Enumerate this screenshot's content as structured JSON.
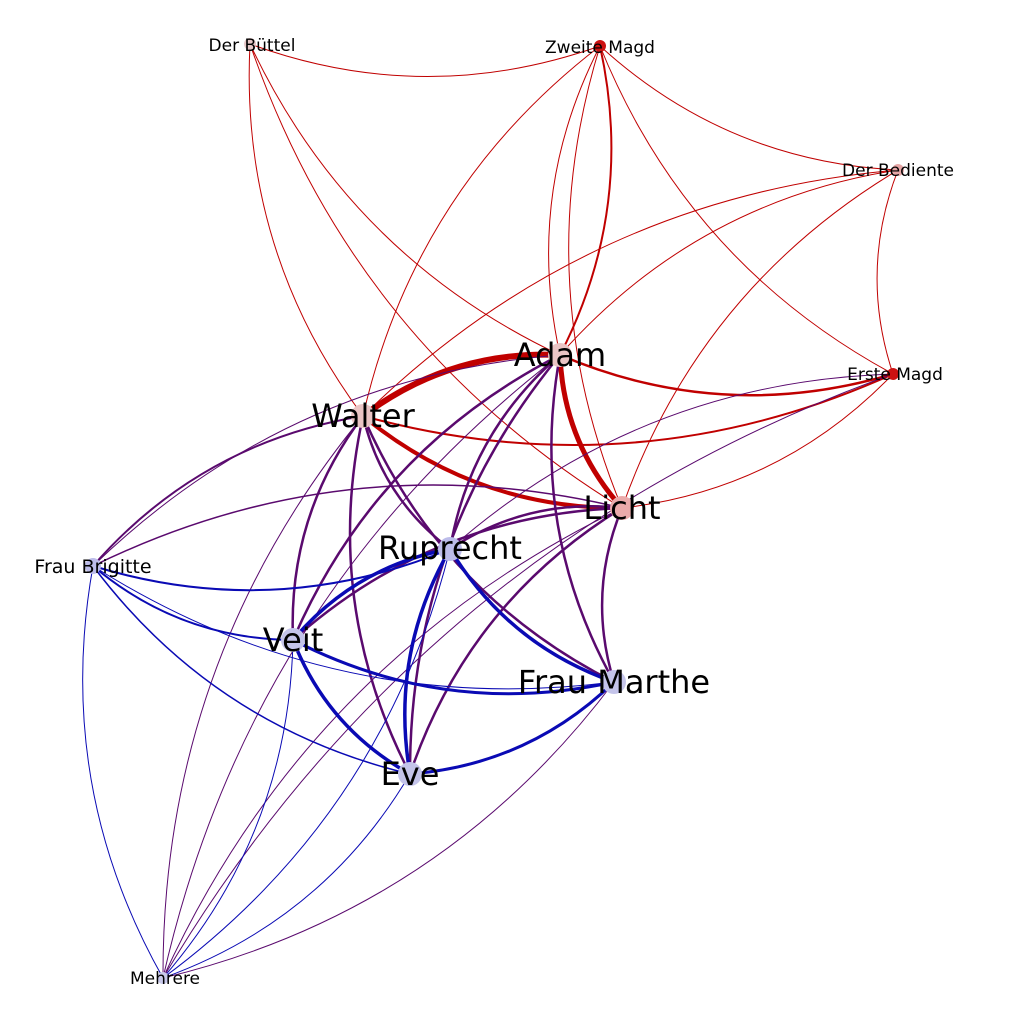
{
  "nodes": [
    {
      "id": "der-buettel",
      "label": "Der Büttel",
      "color": "#e8c8c8",
      "weight": 1
    },
    {
      "id": "zweite-magd",
      "label": "Zweite Magd",
      "color": "#cc1111",
      "weight": 1
    },
    {
      "id": "der-bediente",
      "label": "Der Bediente",
      "color": "#e6a6a6",
      "weight": 1
    },
    {
      "id": "adam",
      "label": "Adam",
      "color": "#eac4c4",
      "weight": 3
    },
    {
      "id": "erste-magd",
      "label": "Erste Magd",
      "color": "#cc1111",
      "weight": 1
    },
    {
      "id": "walter",
      "label": "Walter",
      "color": "#eac4c4",
      "weight": 3
    },
    {
      "id": "licht",
      "label": "Licht",
      "color": "#eaaaaa",
      "weight": 3
    },
    {
      "id": "ruprecht",
      "label": "Ruprecht",
      "color": "#bcbcea",
      "weight": 3
    },
    {
      "id": "frau-brigitte",
      "label": "Frau Brigitte",
      "color": "#bcbcea",
      "weight": 2
    },
    {
      "id": "veit",
      "label": "Veit",
      "color": "#c4c4ea",
      "weight": 3
    },
    {
      "id": "frau-marthe",
      "label": "Frau Marthe",
      "color": "#c4c4ea",
      "weight": 3
    },
    {
      "id": "eve",
      "label": "Eve",
      "color": "#c4c4ea",
      "weight": 3
    },
    {
      "id": "mehrere",
      "label": "Mehrere",
      "color": "#c8c8ea",
      "weight": 1
    }
  ],
  "edges": [
    {
      "source": "adam",
      "target": "walter",
      "color": "#c00000",
      "weight": 6
    },
    {
      "source": "adam",
      "target": "licht",
      "color": "#c00000",
      "weight": 5
    },
    {
      "source": "walter",
      "target": "licht",
      "color": "#c00000",
      "weight": 4
    },
    {
      "source": "adam",
      "target": "erste-magd",
      "color": "#c00000",
      "weight": 2.5
    },
    {
      "source": "walter",
      "target": "erste-magd",
      "color": "#c00000",
      "weight": 2
    },
    {
      "source": "adam",
      "target": "zweite-magd",
      "color": "#c00000",
      "weight": 2
    },
    {
      "source": "zweite-magd",
      "target": "adam",
      "color": "#c00000",
      "weight": 1
    },
    {
      "source": "der-buettel",
      "target": "zweite-magd",
      "color": "#c00000",
      "weight": 1
    },
    {
      "source": "der-buettel",
      "target": "adam",
      "color": "#c00000",
      "weight": 1
    },
    {
      "source": "der-buettel",
      "target": "walter",
      "color": "#c00000",
      "weight": 1
    },
    {
      "source": "der-buettel",
      "target": "licht",
      "color": "#c00000",
      "weight": 1
    },
    {
      "source": "zweite-magd",
      "target": "der-bediente",
      "color": "#c00000",
      "weight": 1
    },
    {
      "source": "zweite-magd",
      "target": "erste-magd",
      "color": "#c00000",
      "weight": 1
    },
    {
      "source": "zweite-magd",
      "target": "walter",
      "color": "#c00000",
      "weight": 1
    },
    {
      "source": "zweite-magd",
      "target": "licht",
      "color": "#c00000",
      "weight": 1
    },
    {
      "source": "der-bediente",
      "target": "erste-magd",
      "color": "#c00000",
      "weight": 1
    },
    {
      "source": "der-bediente",
      "target": "adam",
      "color": "#c00000",
      "weight": 1
    },
    {
      "source": "der-bediente",
      "target": "walter",
      "color": "#c00000",
      "weight": 1
    },
    {
      "source": "der-bediente",
      "target": "licht",
      "color": "#c00000",
      "weight": 1
    },
    {
      "source": "licht",
      "target": "erste-magd",
      "color": "#c00000",
      "weight": 1
    },
    {
      "source": "adam",
      "target": "ruprecht",
      "color": "#5a0a6e",
      "weight": 2.5
    },
    {
      "source": "adam",
      "target": "veit",
      "color": "#5a0a6e",
      "weight": 2.5
    },
    {
      "source": "adam",
      "target": "frau-marthe",
      "color": "#5a0a6e",
      "weight": 2.5
    },
    {
      "source": "adam",
      "target": "eve",
      "color": "#5a0a6e",
      "weight": 2.5
    },
    {
      "source": "walter",
      "target": "ruprecht",
      "color": "#5a0a6e",
      "weight": 2.5
    },
    {
      "source": "walter",
      "target": "veit",
      "color": "#5a0a6e",
      "weight": 2.5
    },
    {
      "source": "walter",
      "target": "frau-marthe",
      "color": "#5a0a6e",
      "weight": 2.5
    },
    {
      "source": "walter",
      "target": "eve",
      "color": "#5a0a6e",
      "weight": 2.5
    },
    {
      "source": "walter",
      "target": "frau-brigitte",
      "color": "#5a0a6e",
      "weight": 2
    },
    {
      "source": "licht",
      "target": "ruprecht",
      "color": "#5a0a6e",
      "weight": 2.5
    },
    {
      "source": "licht",
      "target": "veit",
      "color": "#5a0a6e",
      "weight": 2.5
    },
    {
      "source": "licht",
      "target": "frau-marthe",
      "color": "#5a0a6e",
      "weight": 2.5
    },
    {
      "source": "licht",
      "target": "eve",
      "color": "#5a0a6e",
      "weight": 2.5
    },
    {
      "source": "licht",
      "target": "frau-brigitte",
      "color": "#5a0a6e",
      "weight": 1.5
    },
    {
      "source": "adam",
      "target": "frau-brigitte",
      "color": "#5a0a6e",
      "weight": 1
    },
    {
      "source": "erste-magd",
      "target": "ruprecht",
      "color": "#5a0a6e",
      "weight": 1
    },
    {
      "source": "erste-magd",
      "target": "mehrere",
      "color": "#5a0a6e",
      "weight": 1
    },
    {
      "source": "walter",
      "target": "mehrere",
      "color": "#5a0a6e",
      "weight": 1
    },
    {
      "source": "licht",
      "target": "mehrere",
      "color": "#5a0a6e",
      "weight": 1
    },
    {
      "source": "adam",
      "target": "mehrere",
      "color": "#5a0a6e",
      "weight": 1
    },
    {
      "source": "ruprecht",
      "target": "veit",
      "color": "#0a0ab4",
      "weight": 3.5
    },
    {
      "source": "ruprecht",
      "target": "eve",
      "color": "#0a0ab4",
      "weight": 3.5
    },
    {
      "source": "ruprecht",
      "target": "frau-marthe",
      "color": "#0a0ab4",
      "weight": 3.5
    },
    {
      "source": "veit",
      "target": "eve",
      "color": "#0a0ab4",
      "weight": 3.5
    },
    {
      "source": "veit",
      "target": "frau-marthe",
      "color": "#0a0ab4",
      "weight": 3
    },
    {
      "source": "eve",
      "target": "frau-marthe",
      "color": "#0a0ab4",
      "weight": 3
    },
    {
      "source": "frau-brigitte",
      "target": "ruprecht",
      "color": "#0a0ab4",
      "weight": 2
    },
    {
      "source": "frau-brigitte",
      "target": "veit",
      "color": "#0a0ab4",
      "weight": 2
    },
    {
      "source": "frau-brigitte",
      "target": "eve",
      "color": "#0a0ab4",
      "weight": 1.5
    },
    {
      "source": "frau-brigitte",
      "target": "frau-marthe",
      "color": "#0a0ab4",
      "weight": 1
    },
    {
      "source": "frau-brigitte",
      "target": "mehrere",
      "color": "#0a0ab4",
      "weight": 1
    },
    {
      "source": "mehrere",
      "target": "veit",
      "color": "#0a0ab4",
      "weight": 1
    },
    {
      "source": "mehrere",
      "target": "eve",
      "color": "#0a0ab4",
      "weight": 1
    },
    {
      "source": "mehrere",
      "target": "ruprecht",
      "color": "#0a0ab4",
      "weight": 1
    },
    {
      "source": "mehrere",
      "target": "frau-marthe",
      "color": "#5a0a6e",
      "weight": 1
    }
  ]
}
